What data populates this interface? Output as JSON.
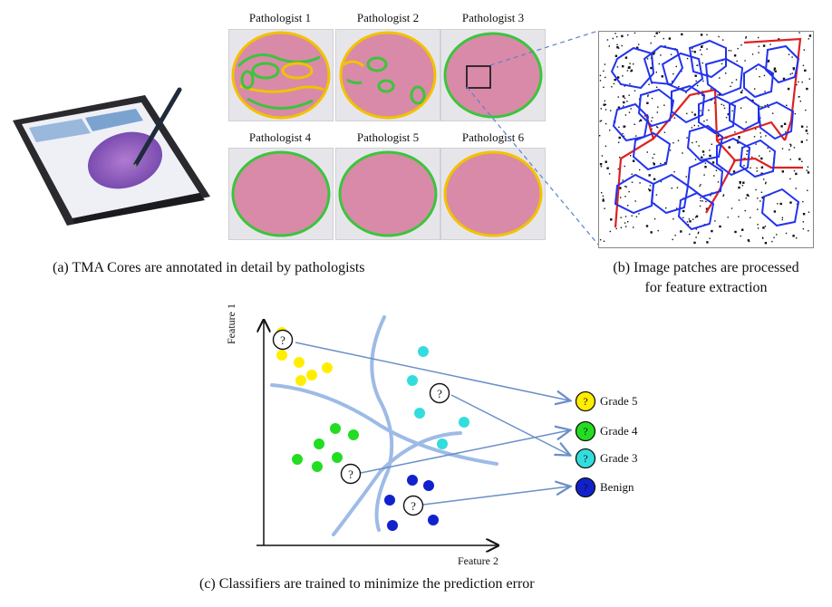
{
  "panel_a": {
    "pathologists": [
      {
        "label": "Pathologist 1"
      },
      {
        "label": "Pathologist 2"
      },
      {
        "label": "Pathologist 3"
      },
      {
        "label": "Pathologist 4"
      },
      {
        "label": "Pathologist 5"
      },
      {
        "label": "Pathologist 6"
      }
    ],
    "caption": "(a) TMA Cores are annotated in detail by pathologists"
  },
  "panel_b": {
    "caption_line1": "(b) Image patches are processed",
    "caption_line2": "for feature extraction"
  },
  "panel_c": {
    "y_axis_label": "Feature 1",
    "x_axis_label": "Feature 2",
    "unknown_marker": "?",
    "legend": [
      {
        "label": "Grade 5",
        "color": "#ffee00"
      },
      {
        "label": "Grade 4",
        "color": "#22dd22"
      },
      {
        "label": "Grade 3",
        "color": "#33dddd"
      },
      {
        "label": "Benign",
        "color": "#1122cc"
      }
    ],
    "caption": "(c) Classifiers are trained to minimize the prediction error"
  },
  "colors": {
    "tissue_pink": "#d98aa8",
    "annotation_green": "#3cc43c",
    "annotation_yellow": "#f2c200",
    "contour_blue": "#2233ee",
    "skeleton_red": "#e02020",
    "arrow_blue": "#6a8fc8",
    "boundary_blue": "#9dbbe6"
  }
}
